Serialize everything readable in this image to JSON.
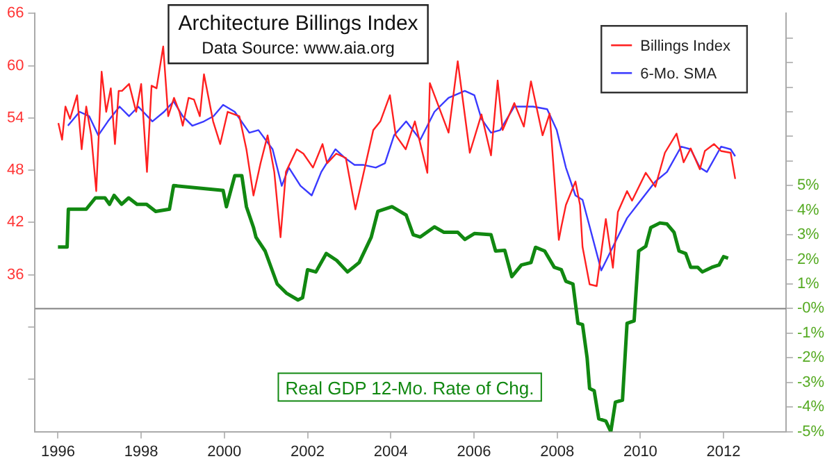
{
  "chart_data": {
    "type": "line",
    "title": "Architecture Billings Index",
    "subtitle": "Data Source: www.aia.org",
    "annotations": [
      "Real GDP 12-Mo. Rate of Chg."
    ],
    "xlim": [
      1995.45,
      2013.5
    ],
    "xticks": [
      1996,
      1998,
      2000,
      2002,
      2004,
      2006,
      2008,
      2010,
      2012
    ],
    "ylim": [
      18,
      66
    ],
    "yticks": [
      {
        "value": 24,
        "label": null
      },
      {
        "value": 30,
        "label": null
      },
      36,
      42,
      48,
      54,
      60,
      66
    ],
    "y2lim": [
      -5,
      12
    ],
    "y2ticks": [
      {
        "value": -5,
        "label": "-5%"
      },
      {
        "value": -4,
        "label": "-4%"
      },
      {
        "value": -3,
        "label": "-3%"
      },
      {
        "value": -2,
        "label": "-2%"
      },
      {
        "value": -1,
        "label": "-1%"
      },
      {
        "value": 0,
        "label": "-0%"
      },
      {
        "value": 1,
        "label": "1%"
      },
      {
        "value": 2,
        "label": "2%"
      },
      {
        "value": 3,
        "label": "3%"
      },
      {
        "value": 4,
        "label": "4%"
      },
      {
        "value": 5,
        "label": "5%"
      },
      {
        "value": 6,
        "label": null
      },
      {
        "value": 7,
        "label": null
      },
      {
        "value": 8,
        "label": null
      },
      {
        "value": 9,
        "label": null
      },
      {
        "value": 10,
        "label": null
      },
      {
        "value": 11,
        "label": null
      }
    ],
    "ref_lines": [
      {
        "axis": "y2",
        "value": 0,
        "color": "#808080"
      }
    ],
    "legend": "top right",
    "grid": false,
    "marker": "none",
    "line_style": "solid",
    "series": [
      {
        "name": "Billings Index",
        "color": "#ff2020",
        "x": [
          1996.01,
          1996.1,
          1996.18,
          1996.29,
          1996.46,
          1996.57,
          1996.68,
          1996.8,
          1996.92,
          1997.05,
          1997.16,
          1997.27,
          1997.37,
          1997.46,
          1997.54,
          1997.71,
          1997.88,
          1998.0,
          1998.14,
          1998.25,
          1998.37,
          1998.53,
          1998.65,
          1998.79,
          1998.92,
          1999.0,
          1999.14,
          1999.27,
          1999.41,
          1999.51,
          1999.73,
          1999.9,
          2000.08,
          2000.36,
          2000.53,
          2000.7,
          2000.87,
          2001.04,
          2001.2,
          2001.35,
          2001.48,
          2001.74,
          2001.9,
          2002.13,
          2002.36,
          2002.47,
          2002.69,
          2002.92,
          2003.15,
          2003.58,
          2003.75,
          2003.98,
          2004.12,
          2004.36,
          2004.58,
          2004.88,
          2004.94,
          2005.39,
          2005.61,
          2005.9,
          2006.18,
          2006.41,
          2006.57,
          2006.69,
          2006.97,
          2007.2,
          2007.37,
          2007.65,
          2007.82,
          2008.04,
          2008.1,
          2008.21,
          2008.44,
          2008.55,
          2008.61,
          2008.78,
          2008.95,
          2009.17,
          2009.34,
          2009.46,
          2009.68,
          2009.8,
          2010.13,
          2010.36,
          2010.59,
          2010.87,
          2011.04,
          2011.21,
          2011.43,
          2011.55,
          2011.77,
          2011.94,
          2012.17,
          2012.28
        ],
        "values": [
          53.4,
          51.5,
          55.3,
          53.9,
          56.6,
          50.4,
          55.3,
          52.0,
          45.6,
          59.3,
          54.7,
          57.4,
          51.0,
          57.1,
          57.1,
          57.9,
          54.7,
          57.9,
          47.8,
          57.7,
          57.4,
          62.2,
          54.2,
          56.3,
          54.7,
          53.1,
          56.3,
          56.1,
          54.2,
          59.0,
          53.6,
          51.0,
          54.7,
          54.2,
          50.4,
          45.1,
          48.8,
          52.0,
          47.8,
          40.3,
          47.8,
          50.4,
          49.9,
          48.3,
          51.0,
          48.8,
          49.9,
          49.4,
          43.5,
          52.6,
          53.6,
          56.6,
          52.0,
          50.4,
          53.6,
          47.7,
          58.0,
          52.3,
          60.5,
          50.0,
          54.4,
          49.7,
          58.3,
          52.6,
          55.7,
          53.0,
          58.2,
          52.0,
          54.5,
          40.0,
          41.5,
          44.0,
          46.7,
          44.0,
          39.2,
          34.9,
          34.7,
          42.4,
          36.8,
          43.2,
          45.6,
          44.5,
          47.7,
          46.1,
          50.0,
          52.2,
          48.9,
          50.5,
          48.1,
          50.2,
          51.0,
          50.2,
          50.0,
          47.0
        ]
      },
      {
        "name": "6-Mo. SMA",
        "color": "#3a3aff",
        "x": [
          1996.24,
          1996.52,
          1996.75,
          1996.97,
          1997.2,
          1997.48,
          1997.71,
          1997.93,
          1998.27,
          1998.55,
          1998.78,
          1999.0,
          1999.23,
          1999.51,
          1999.74,
          1999.97,
          2000.25,
          2000.6,
          2000.82,
          2001.16,
          2001.38,
          2001.55,
          2001.83,
          2002.1,
          2002.33,
          2002.67,
          2002.9,
          2003.13,
          2003.35,
          2003.64,
          2003.86,
          2004.08,
          2004.37,
          2004.71,
          2005.05,
          2005.39,
          2005.78,
          2006.01,
          2006.18,
          2006.41,
          2006.63,
          2006.97,
          2007.42,
          2007.76,
          2007.99,
          2008.21,
          2008.44,
          2008.61,
          2009.06,
          2009.34,
          2009.68,
          2010.02,
          2010.36,
          2010.64,
          2010.98,
          2011.21,
          2011.43,
          2011.6,
          2011.94,
          2012.17,
          2012.28
        ],
        "values": [
          53.1,
          54.7,
          54.2,
          52.0,
          53.6,
          55.3,
          54.2,
          55.3,
          53.6,
          54.7,
          55.9,
          54.2,
          53.1,
          53.6,
          54.2,
          55.5,
          54.7,
          52.3,
          52.6,
          50.4,
          46.2,
          48.3,
          46.2,
          45.1,
          47.8,
          50.4,
          49.4,
          48.6,
          48.6,
          48.3,
          48.8,
          52.0,
          53.6,
          51.5,
          54.7,
          56.3,
          57.1,
          56.6,
          53.9,
          52.3,
          52.6,
          55.3,
          55.3,
          55.0,
          52.6,
          48.3,
          45.1,
          44.6,
          36.5,
          39.2,
          42.5,
          44.6,
          46.7,
          47.8,
          50.7,
          50.4,
          48.3,
          47.8,
          50.7,
          50.4,
          49.6
        ]
      },
      {
        "axis": "y2",
        "color": "#118811",
        "x": [
          1996.0,
          1996.22,
          1996.25,
          1996.68,
          1996.9,
          1997.13,
          1997.24,
          1997.35,
          1997.53,
          1997.7,
          1997.9,
          1998.13,
          1998.35,
          1998.68,
          1998.78,
          1999.97,
          2000.05,
          2000.25,
          2000.42,
          2000.53,
          2000.7,
          2000.76,
          2000.98,
          2001.27,
          2001.49,
          2001.77,
          2001.88,
          2002.0,
          2002.2,
          2002.45,
          2002.7,
          2002.96,
          2003.24,
          2003.53,
          2003.69,
          2004.03,
          2004.37,
          2004.54,
          2004.71,
          2005.05,
          2005.28,
          2005.61,
          2005.78,
          2006.01,
          2006.41,
          2006.52,
          2006.74,
          2006.91,
          2007.14,
          2007.37,
          2007.48,
          2007.7,
          2007.93,
          2008.1,
          2008.21,
          2008.38,
          2008.5,
          2008.61,
          2008.72,
          2008.78,
          2008.89,
          2009.0,
          2009.17,
          2009.29,
          2009.4,
          2009.57,
          2009.68,
          2009.85,
          2009.96,
          2010.13,
          2010.25,
          2010.47,
          2010.64,
          2010.81,
          2010.93,
          2011.09,
          2011.21,
          2011.38,
          2011.49,
          2011.72,
          2011.89,
          2012.0,
          2012.11
        ],
        "values": [
          2.5,
          2.5,
          4.04,
          4.04,
          4.5,
          4.5,
          4.24,
          4.6,
          4.24,
          4.5,
          4.24,
          4.24,
          3.95,
          4.04,
          5.0,
          4.8,
          4.14,
          5.4,
          5.4,
          4.14,
          3.3,
          2.9,
          2.34,
          1.0,
          0.63,
          0.35,
          0.44,
          1.58,
          1.49,
          2.24,
          1.96,
          1.49,
          1.87,
          2.9,
          3.95,
          4.14,
          3.8,
          3.0,
          2.91,
          3.32,
          3.1,
          3.1,
          2.81,
          3.05,
          3.0,
          2.34,
          2.37,
          1.3,
          1.77,
          1.87,
          2.49,
          2.34,
          1.68,
          1.58,
          1.11,
          1.0,
          -0.6,
          -0.65,
          -2.0,
          -3.25,
          -3.34,
          -4.48,
          -4.57,
          -5.0,
          -3.8,
          -3.72,
          -0.6,
          -0.5,
          2.34,
          2.53,
          3.29,
          3.48,
          3.44,
          3.1,
          2.34,
          2.24,
          1.68,
          1.68,
          1.49,
          1.68,
          1.77,
          2.11,
          2.05
        ]
      }
    ]
  }
}
